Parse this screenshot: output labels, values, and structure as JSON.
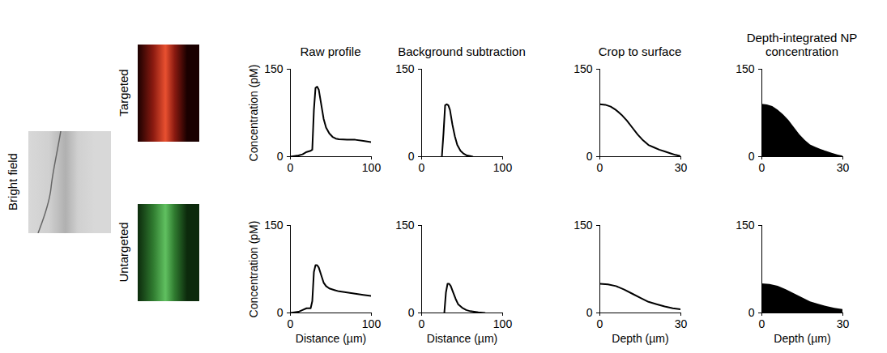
{
  "images": {
    "label": "Bright field",
    "rows": [
      "Targeted",
      "Untargeted"
    ]
  },
  "chart_data": [
    {
      "type": "line",
      "title": "Raw profile",
      "y_label": "Concentration (pM)",
      "color": "#000000",
      "x": [
        0,
        5,
        10,
        15,
        20,
        25,
        27,
        29,
        31,
        33,
        35,
        38,
        41,
        44,
        48,
        52,
        56,
        60,
        70,
        80,
        90,
        100
      ],
      "values": [
        0,
        1,
        2,
        4,
        8,
        10,
        12,
        80,
        118,
        120,
        115,
        90,
        65,
        50,
        40,
        34,
        31,
        30,
        29,
        29,
        27,
        25
      ],
      "xlim": [
        0,
        100
      ],
      "ylim": [
        0,
        150
      ],
      "xticks": [
        0,
        100
      ],
      "yticks": [
        0,
        150
      ]
    },
    {
      "type": "line",
      "title": "Background subtraction",
      "color": "#000000",
      "x": [
        25,
        27,
        29,
        31,
        33,
        35,
        38,
        41,
        44,
        48,
        52,
        56,
        60,
        63
      ],
      "values": [
        0,
        40,
        88,
        90,
        88,
        80,
        55,
        35,
        20,
        10,
        5,
        2,
        1,
        0
      ],
      "xlim": [
        0,
        100
      ],
      "ylim": [
        0,
        150
      ],
      "xticks": [
        0,
        100
      ],
      "yticks": [
        0,
        150
      ]
    },
    {
      "type": "line",
      "title": "Crop to surface",
      "color": "#000000",
      "x": [
        0,
        2,
        4,
        6,
        8,
        10,
        12,
        14,
        16,
        18,
        20,
        22,
        24,
        26,
        28,
        30
      ],
      "values": [
        90,
        89,
        86,
        80,
        72,
        62,
        50,
        38,
        28,
        20,
        16,
        12,
        9,
        6,
        3,
        1
      ],
      "xlim": [
        0,
        30
      ],
      "ylim": [
        0,
        150
      ],
      "xticks": [
        0,
        30
      ],
      "yticks": [
        0,
        150
      ]
    },
    {
      "type": "area",
      "title": "Depth-integrated NP concentration",
      "color": "#000000",
      "x": [
        0,
        2,
        4,
        6,
        8,
        10,
        12,
        14,
        16,
        18,
        20,
        22,
        24,
        26,
        28,
        30
      ],
      "values": [
        90,
        89,
        86,
        80,
        72,
        62,
        50,
        38,
        28,
        20,
        16,
        12,
        9,
        6,
        3,
        1
      ],
      "xlim": [
        0,
        30
      ],
      "ylim": [
        0,
        150
      ],
      "xticks": [
        0,
        30
      ],
      "yticks": [
        0,
        150
      ]
    },
    {
      "type": "line",
      "y_label": "Concentration (pM)",
      "x_label": "Distance (µm)",
      "color": "#000000",
      "x": [
        0,
        5,
        10,
        15,
        20,
        25,
        27,
        29,
        31,
        33,
        35,
        38,
        41,
        44,
        48,
        55,
        60,
        70,
        80,
        90,
        100
      ],
      "values": [
        0,
        1,
        2,
        5,
        8,
        8,
        20,
        70,
        82,
        82,
        78,
        65,
        52,
        46,
        42,
        39,
        37,
        35,
        33,
        31,
        29
      ],
      "xlim": [
        0,
        100
      ],
      "ylim": [
        0,
        150
      ],
      "xticks": [
        0,
        100
      ],
      "yticks": [
        0,
        150
      ]
    },
    {
      "type": "line",
      "x_label": "Distance (µm)",
      "color": "#000000",
      "x": [
        28,
        30,
        32,
        34,
        36,
        39,
        42,
        45,
        50,
        55,
        60,
        70,
        78
      ],
      "values": [
        0,
        35,
        50,
        50,
        46,
        35,
        24,
        15,
        9,
        5,
        3,
        1,
        0
      ],
      "xlim": [
        0,
        100
      ],
      "ylim": [
        0,
        150
      ],
      "xticks": [
        0,
        100
      ],
      "yticks": [
        0,
        150
      ]
    },
    {
      "type": "line",
      "x_label": "Depth (µm)",
      "color": "#000000",
      "x": [
        0,
        3,
        6,
        9,
        12,
        15,
        18,
        21,
        24,
        27,
        30
      ],
      "values": [
        50,
        49,
        46,
        40,
        33,
        26,
        19,
        15,
        11,
        8,
        6
      ],
      "xlim": [
        0,
        30
      ],
      "ylim": [
        0,
        150
      ],
      "xticks": [
        0,
        30
      ],
      "yticks": [
        0,
        150
      ]
    },
    {
      "type": "area",
      "x_label": "Depth (µm)",
      "color": "#000000",
      "x": [
        0,
        3,
        6,
        9,
        12,
        15,
        18,
        21,
        24,
        27,
        30
      ],
      "values": [
        50,
        49,
        46,
        40,
        33,
        26,
        19,
        15,
        11,
        8,
        6
      ],
      "xlim": [
        0,
        30
      ],
      "ylim": [
        0,
        150
      ],
      "xticks": [
        0,
        30
      ],
      "yticks": [
        0,
        150
      ]
    }
  ]
}
